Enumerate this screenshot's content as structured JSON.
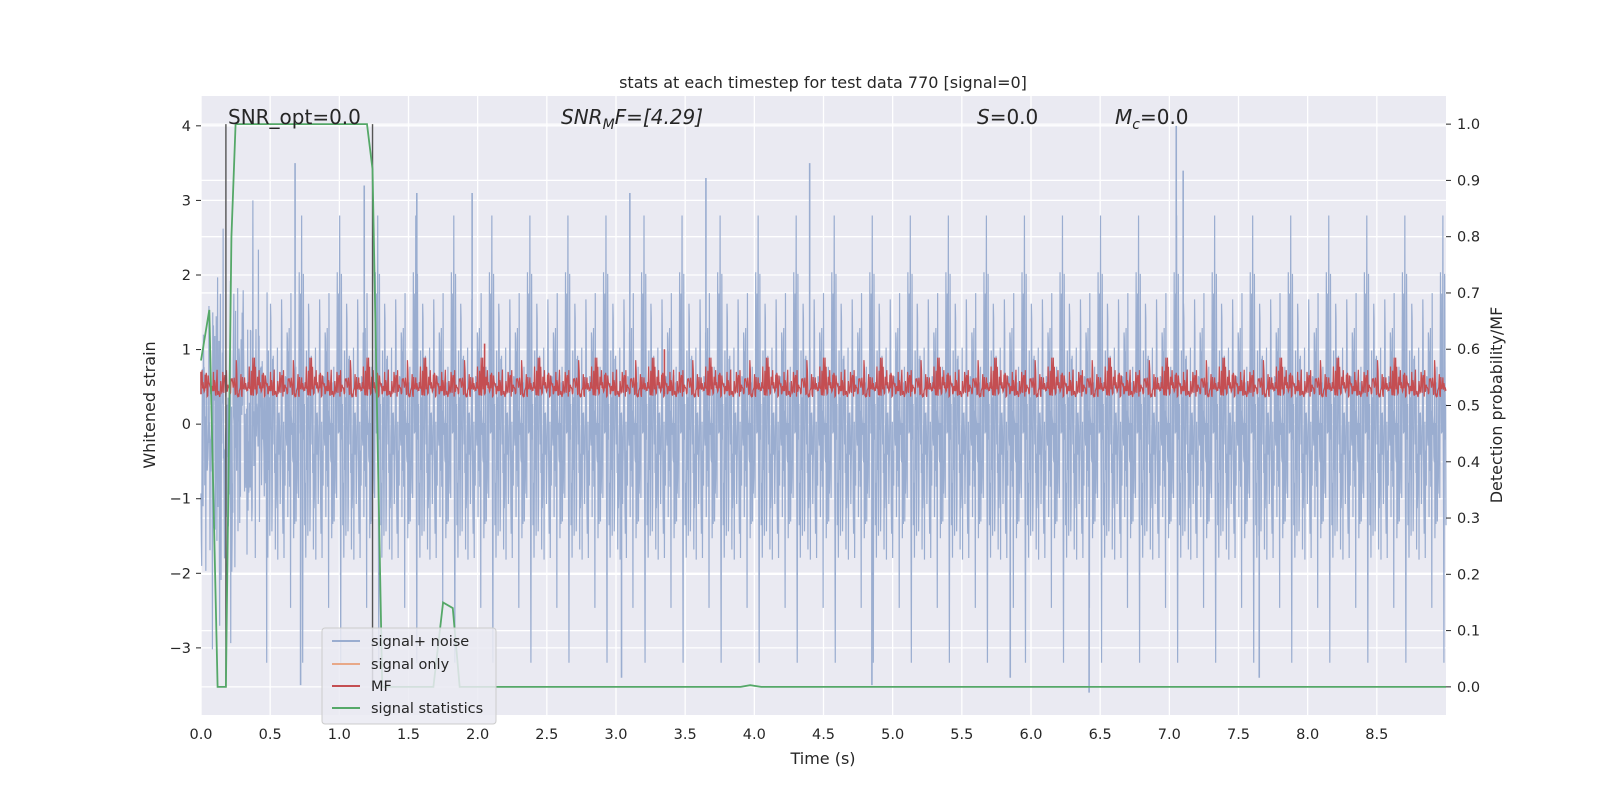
{
  "chart_data": {
    "type": "line",
    "title": "stats at each timestep for test data 770 [signal=0]",
    "xlabel": "Time (s)",
    "ylabel": "Whitened strain",
    "y2label": "Detection probability/MF",
    "xlim": [
      0.0,
      9.0
    ],
    "ylim": [
      -3.9,
      4.4
    ],
    "y2lim": [
      -0.05,
      1.05
    ],
    "xticks": [
      "0.0",
      "0.5",
      "1.0",
      "1.5",
      "2.0",
      "2.5",
      "3.0",
      "3.5",
      "4.0",
      "4.5",
      "5.0",
      "5.5",
      "6.0",
      "6.5",
      "7.0",
      "7.5",
      "8.0",
      "8.5"
    ],
    "yticks": [
      "4",
      "3",
      "2",
      "1",
      "0",
      "−1",
      "−2",
      "−3"
    ],
    "y2ticks": [
      "1.0",
      "0.9",
      "0.8",
      "0.7",
      "0.6",
      "0.5",
      "0.4",
      "0.3",
      "0.2",
      "0.1",
      "0.0"
    ],
    "grid": true,
    "legend_position": "lower-left",
    "annotations": {
      "snr_opt": "SNR_opt=0.0",
      "snr_mf_base": "SNR",
      "snr_mf_sub": "M",
      "snr_mf_rest": "F=[4.29]",
      "s_var": "S",
      "s_val": "=0.0",
      "mc_base": "M",
      "mc_sub": "c",
      "mc_val": "=0.0"
    },
    "vertical_lines_x": [
      0.18,
      1.24
    ],
    "series": [
      {
        "name": "signal+ noise",
        "color": "#9aadd0",
        "description_level": "noise band roughly within ±1.8 whitened strain, peaks up to ~4.0 and down to ~-3.6",
        "peaks": [
          {
            "x": 0.68,
            "y": 3.5
          },
          {
            "x": 1.18,
            "y": 3.2
          },
          {
            "x": 1.56,
            "y": 3.1
          },
          {
            "x": 1.96,
            "y": 3.1
          },
          {
            "x": 3.1,
            "y": 3.1
          },
          {
            "x": 3.65,
            "y": 3.3
          },
          {
            "x": 4.4,
            "y": 3.5
          },
          {
            "x": 7.05,
            "y": 4.0
          },
          {
            "x": 7.1,
            "y": 3.4
          }
        ],
        "troughs": [
          {
            "x": 0.72,
            "y": -3.5
          },
          {
            "x": 3.04,
            "y": -3.4
          },
          {
            "x": 4.85,
            "y": -3.5
          },
          {
            "x": 5.85,
            "y": -3.4
          },
          {
            "x": 6.42,
            "y": -3.6
          },
          {
            "x": 7.65,
            "y": -3.4
          }
        ]
      },
      {
        "name": "signal only",
        "color": "#e8a888",
        "values": []
      },
      {
        "name": "MF",
        "color": "#c44e52",
        "description_level": "matched filter output fluctuating between ~0.5 and ~0.62 on the right axis",
        "peaks": [
          {
            "x": 2.05,
            "y": 0.61
          },
          {
            "x": 3.35,
            "y": 0.6
          },
          {
            "x": 0.0,
            "y": 0.56
          }
        ]
      },
      {
        "name": "signal statistics",
        "color": "#55a868",
        "x": [
          0.0,
          0.06,
          0.12,
          0.18,
          0.22,
          0.25,
          1.2,
          1.24,
          1.31,
          1.37,
          1.45,
          1.62,
          1.68,
          1.75,
          1.82,
          1.87,
          3.9,
          3.97,
          4.05,
          9.0
        ],
        "values": [
          0.58,
          0.67,
          0.0,
          0.0,
          0.8,
          1.0,
          1.0,
          0.92,
          0.0,
          0.0,
          0.0,
          0.0,
          0.0,
          0.15,
          0.14,
          0.0,
          0.0,
          0.003,
          0.0,
          0.0
        ]
      }
    ]
  }
}
